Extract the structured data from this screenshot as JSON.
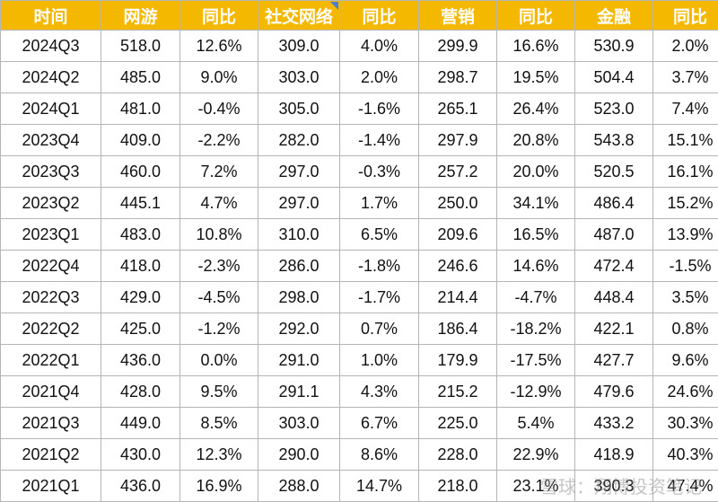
{
  "headers": [
    "时间",
    "网游",
    "同比",
    "社交网络",
    "同比",
    "营销",
    "同比",
    "金融",
    "同比"
  ],
  "rows": [
    [
      "2024Q3",
      "518.0",
      "12.6%",
      "309.0",
      "4.0%",
      "299.9",
      "16.6%",
      "530.9",
      "2.0%"
    ],
    [
      "2024Q2",
      "485.0",
      "9.0%",
      "303.0",
      "2.0%",
      "298.7",
      "19.5%",
      "504.4",
      "3.7%"
    ],
    [
      "2024Q1",
      "481.0",
      "-0.4%",
      "305.0",
      "-1.6%",
      "265.1",
      "26.4%",
      "523.0",
      "7.4%"
    ],
    [
      "2023Q4",
      "409.0",
      "-2.2%",
      "282.0",
      "-1.4%",
      "297.9",
      "20.8%",
      "543.8",
      "15.1%"
    ],
    [
      "2023Q3",
      "460.0",
      "7.2%",
      "297.0",
      "-0.3%",
      "257.2",
      "20.0%",
      "520.5",
      "16.1%"
    ],
    [
      "2023Q2",
      "445.1",
      "4.7%",
      "297.0",
      "1.7%",
      "250.0",
      "34.1%",
      "486.4",
      "15.2%"
    ],
    [
      "2023Q1",
      "483.0",
      "10.8%",
      "310.0",
      "6.5%",
      "209.6",
      "16.5%",
      "487.0",
      "13.9%"
    ],
    [
      "2022Q4",
      "418.0",
      "-2.3%",
      "286.0",
      "-1.8%",
      "246.6",
      "14.6%",
      "472.4",
      "-1.5%"
    ],
    [
      "2022Q3",
      "429.0",
      "-4.5%",
      "298.0",
      "-1.7%",
      "214.4",
      "-4.7%",
      "448.4",
      "3.5%"
    ],
    [
      "2022Q2",
      "425.0",
      "-1.2%",
      "292.0",
      "0.7%",
      "186.4",
      "-18.2%",
      "422.1",
      "0.8%"
    ],
    [
      "2022Q1",
      "436.0",
      "0.0%",
      "291.0",
      "1.0%",
      "179.9",
      "-17.5%",
      "427.7",
      "9.6%"
    ],
    [
      "2021Q4",
      "428.0",
      "9.5%",
      "291.1",
      "4.3%",
      "215.2",
      "-12.9%",
      "479.6",
      "24.6%"
    ],
    [
      "2021Q3",
      "449.0",
      "8.5%",
      "303.0",
      "6.7%",
      "225.0",
      "5.4%",
      "433.2",
      "30.3%"
    ],
    [
      "2021Q2",
      "430.0",
      "12.3%",
      "290.0",
      "8.6%",
      "228.0",
      "22.9%",
      "418.9",
      "40.3%"
    ],
    [
      "2021Q1",
      "436.0",
      "16.9%",
      "288.0",
      "14.7%",
      "218.0",
      "23.1%",
      "390.3",
      "47.4%"
    ]
  ],
  "watermark": "雪球：翔博投资笔记",
  "colors": {
    "header_bg": "#f5b800",
    "header_text": "#ffffff",
    "border": "#b5b5b5",
    "corner_mark": "#4a7fd4"
  }
}
